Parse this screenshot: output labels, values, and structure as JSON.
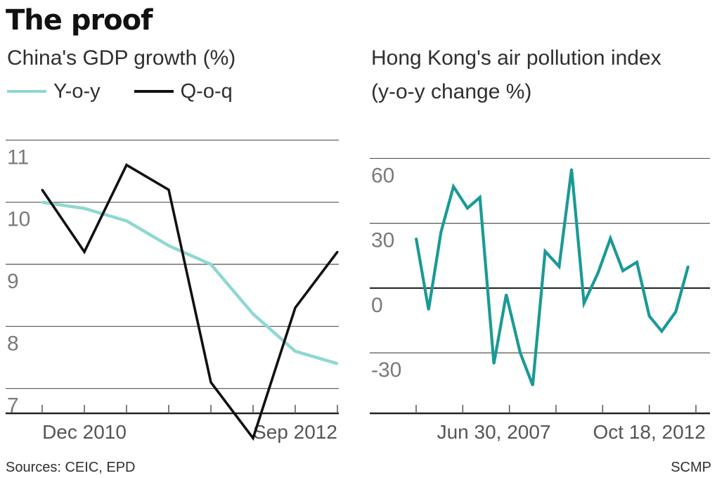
{
  "headline": "The proof",
  "footer": {
    "sources": "Sources: CEIC, EPD",
    "credit": "SCMP"
  },
  "chart_data": [
    {
      "type": "line",
      "title": "China's GDP growth (%)",
      "xlabel": "",
      "ylabel": "",
      "ylim": [
        6.6,
        11.4
      ],
      "x_index_range": [
        0,
        7
      ],
      "x_tick_positions": [
        0,
        1,
        2,
        3,
        4,
        5,
        6,
        7
      ],
      "x_tick_labels": [
        {
          "label": "Dec 2010",
          "at": 1
        },
        {
          "label": "Sep 2012",
          "at": 6
        }
      ],
      "y_ticks": [
        11,
        10,
        9,
        8,
        7
      ],
      "y_tick_labels": [
        "11",
        "10",
        "9",
        "8",
        "7"
      ],
      "series": [
        {
          "name": "Y-o-y",
          "color": "#8fd8d2",
          "x": [
            0,
            1,
            2,
            3,
            4,
            5,
            6,
            7
          ],
          "values": [
            10.0,
            9.9,
            9.7,
            9.3,
            9.0,
            8.2,
            7.6,
            7.4
          ]
        },
        {
          "name": "Q-o-q",
          "color": "#111111",
          "x": [
            0,
            1,
            2,
            3,
            4,
            5,
            6,
            7
          ],
          "values": [
            10.2,
            9.2,
            10.6,
            10.2,
            7.1,
            6.2,
            8.3,
            9.2
          ]
        }
      ]
    },
    {
      "type": "line",
      "title": "Hong Kong's air pollution index",
      "subtitle": "(y-o-y change %)",
      "xlabel": "",
      "ylabel": "",
      "ylim": [
        -58,
        80
      ],
      "zero_line": true,
      "x_index_range": [
        0,
        18
      ],
      "x_tick_positions": [
        0,
        3,
        6,
        9,
        12,
        15,
        18
      ],
      "x_tick_labels": [
        {
          "label": "Jun 30, 2007",
          "at": 5
        },
        {
          "label": "Oct 18, 2012",
          "at": 15
        }
      ],
      "y_ticks": [
        60,
        30,
        0,
        -30
      ],
      "y_tick_labels": [
        "60",
        "30",
        "0",
        "-30"
      ],
      "series": [
        {
          "name": "Y-o-y change",
          "color": "#1a9a96",
          "x": [
            0,
            0.8,
            1.6,
            2.4,
            3.3,
            4.1,
            5.0,
            5.8,
            6.7,
            7.5,
            8.3,
            9.2,
            10.0,
            10.8,
            11.7,
            12.5,
            13.3,
            14.2,
            15.0,
            15.8,
            16.7,
            17.5
          ],
          "values": [
            23,
            -10,
            26,
            47,
            37,
            42,
            -35,
            -3,
            -30,
            -45,
            17,
            10,
            55,
            -7,
            7,
            23,
            8,
            12,
            -13,
            -20,
            -11,
            10
          ]
        }
      ]
    }
  ]
}
